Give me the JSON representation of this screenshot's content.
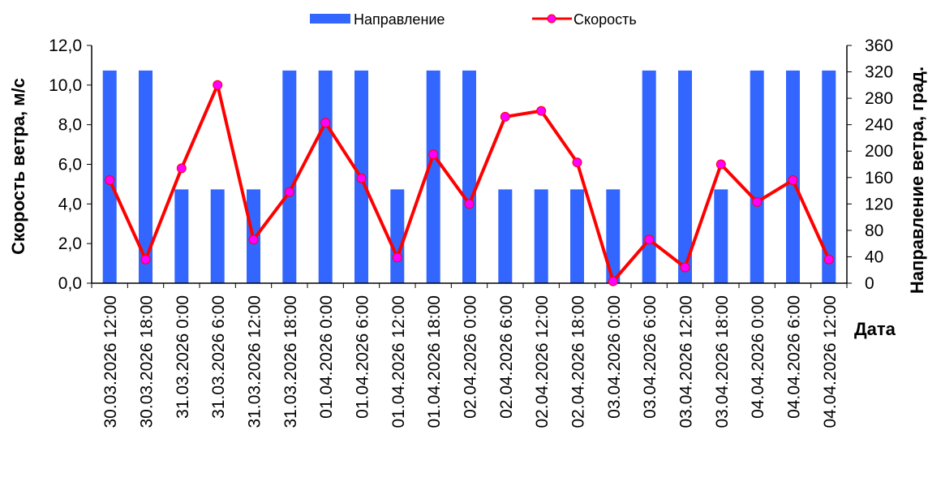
{
  "chart_data": {
    "type": "bar+line",
    "categories": [
      "30.03.2026 12:00",
      "30.03.2026 18:00",
      "31.03.2026 0:00",
      "31.03.2026 6:00",
      "31.03.2026 12:00",
      "31.03.2026 18:00",
      "01.04.2026 0:00",
      "01.04.2026 6:00",
      "01.04.2026 12:00",
      "01.04.2026 18:00",
      "02.04.2026 0:00",
      "02.04.2026 6:00",
      "02.04.2026 12:00",
      "02.04.2026 18:00",
      "03.04.2026 0:00",
      "03.04.2026 6:00",
      "03.04.2026 12:00",
      "03.04.2026 18:00",
      "04.04.2026 0:00",
      "04.04.2026 6:00",
      "04.04.2026 12:00"
    ],
    "series": [
      {
        "name": "Направление",
        "type": "bar",
        "axis": "right",
        "color": "#3366ff",
        "values": [
          322,
          322,
          142,
          142,
          142,
          322,
          322,
          322,
          142,
          322,
          322,
          142,
          142,
          142,
          142,
          322,
          322,
          142,
          322,
          322,
          322
        ]
      },
      {
        "name": "Скорость",
        "type": "line",
        "axis": "left",
        "color": "#ff0000",
        "marker_color": "#ff00ff",
        "values": [
          5.2,
          1.2,
          5.8,
          10.0,
          2.2,
          4.6,
          8.1,
          5.3,
          1.3,
          6.5,
          4.0,
          8.4,
          8.7,
          6.1,
          0.1,
          2.2,
          0.8,
          6.0,
          4.1,
          5.2,
          1.2
        ]
      }
    ],
    "ylabel": "Скорость ветра, м/с",
    "ylabel_right": "Направление ветра, град.",
    "xlabel": "Дата",
    "ylim": [
      0,
      12
    ],
    "ylim_right": [
      0,
      360
    ],
    "yticks": [
      "0,0",
      "2,0",
      "4,0",
      "6,0",
      "8,0",
      "10,0",
      "12,0"
    ],
    "yticks_right": [
      "0",
      "40",
      "80",
      "120",
      "160",
      "200",
      "240",
      "280",
      "320",
      "360"
    ],
    "legend_position": "top",
    "grid": false
  }
}
